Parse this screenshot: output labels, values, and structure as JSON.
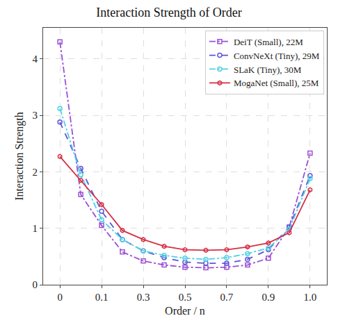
{
  "chart_data": {
    "type": "line",
    "title": "Interaction Strength of Order",
    "x_label": "Order / n",
    "y_label": "Interaction Strength",
    "categories": [
      "0",
      null,
      "0.1",
      null,
      "0.3",
      null,
      "0.5",
      null,
      "0.7",
      null,
      "0.9",
      null,
      "1.0"
    ],
    "series": [
      {
        "name": "DeiT (Small), 22M",
        "color": "#9b4fd6",
        "marker": "square",
        "line_style": "dashdot",
        "values": [
          4.3,
          1.6,
          1.05,
          0.58,
          0.42,
          0.35,
          0.31,
          0.3,
          0.31,
          0.35,
          0.47,
          1.02,
          2.33
        ]
      },
      {
        "name": "ConvNeXt (Tiny), 29M",
        "color": "#5a55d8",
        "marker": "circle",
        "line_style": "dash",
        "values": [
          2.88,
          2.06,
          1.3,
          0.8,
          0.6,
          0.48,
          0.4,
          0.38,
          0.38,
          0.45,
          0.62,
          1.02,
          1.93
        ]
      },
      {
        "name": "SLaK (Tiny), 30M",
        "color": "#4fd0e6",
        "marker": "circle",
        "line_style": "dashdot",
        "values": [
          3.12,
          1.95,
          1.15,
          0.8,
          0.6,
          0.52,
          0.47,
          0.45,
          0.48,
          0.55,
          0.65,
          0.98,
          1.88
        ]
      },
      {
        "name": "MogaNet (Small), 25M",
        "color": "#d62f45",
        "marker": "hexagon",
        "line_style": "solid",
        "values": [
          2.27,
          1.85,
          1.42,
          0.96,
          0.8,
          0.68,
          0.62,
          0.61,
          0.62,
          0.67,
          0.74,
          0.92,
          1.68
        ]
      }
    ],
    "ylim": [
      0,
      4.55
    ],
    "yticks": [
      0,
      1,
      2,
      3,
      4
    ],
    "grid": true,
    "legend": "upper right"
  }
}
